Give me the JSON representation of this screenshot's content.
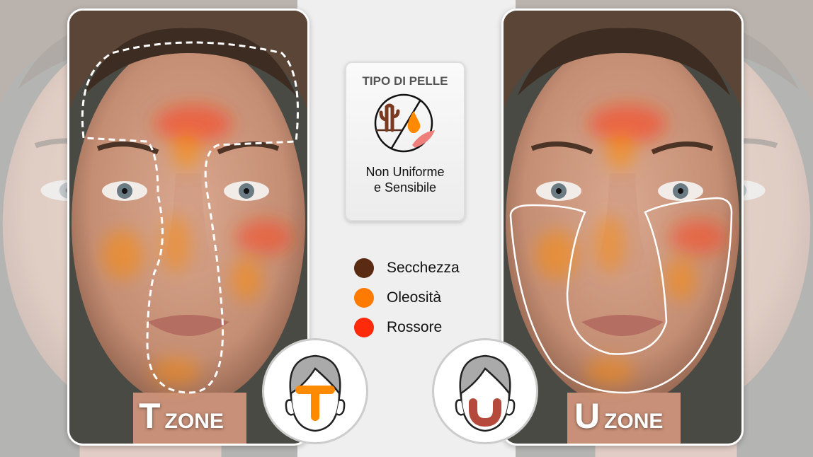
{
  "card": {
    "title": "TIPO DI PELLE",
    "icon": "dry-oily-sensitive-icon",
    "subtitle_line1": "Non Uniforme",
    "subtitle_line2": "e Sensibile"
  },
  "legend": [
    {
      "label": "Secchezza",
      "color": "#5a2a12"
    },
    {
      "label": "Oleosità",
      "color": "#ff7a00"
    },
    {
      "label": "Rossore",
      "color": "#ff2a0a"
    }
  ],
  "t_zone": {
    "letter": "T",
    "word": "ZONE",
    "icon_color": "#ff8a00"
  },
  "u_zone": {
    "letter": "U",
    "word": "ZONE",
    "icon_color": "#b5493c"
  }
}
